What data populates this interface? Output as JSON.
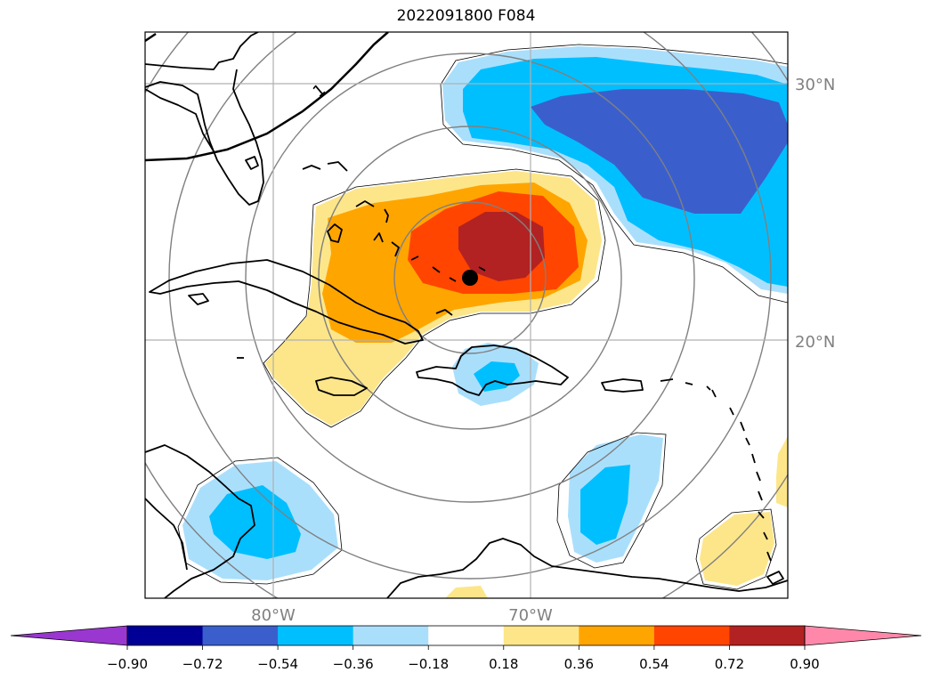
{
  "title": "2022091800 F084",
  "map": {
    "lat_labels": [
      {
        "text": "30°N",
        "lat": 30
      },
      {
        "text": "20°N",
        "lat": 20
      }
    ],
    "lon_labels": [
      {
        "text": "80°W",
        "lon": -80
      },
      {
        "text": "70°W",
        "lon": -70
      }
    ],
    "contour_label": "1",
    "colors": {
      "neg_extreme": "#9a37d0",
      "neg_090": "#000096",
      "neg_072": "#3a5fcd",
      "neg_054": "#00bfff",
      "neg_036": "#aadffc",
      "neutral": "#ffffff",
      "pos_018": "#fde68a",
      "pos_036": "#ffa500",
      "pos_054": "#ff4500",
      "pos_072": "#b22222",
      "pos_extreme": "#ff88aa",
      "gridline": "#b0b0b0",
      "range_ring": "#808080",
      "coast": "#000000",
      "storm_marker": "#000000"
    }
  },
  "colorbar": {
    "ticks": [
      "−0.90",
      "−0.72",
      "−0.54",
      "−0.36",
      "−0.18",
      "0.18",
      "0.36",
      "0.54",
      "0.72",
      "0.90"
    ],
    "colors": [
      "#9a37d0",
      "#000096",
      "#3a5fcd",
      "#00bfff",
      "#aadffc",
      "#ffffff",
      "#fde68a",
      "#ffa500",
      "#ff4500",
      "#b22222",
      "#ff88aa"
    ]
  }
}
